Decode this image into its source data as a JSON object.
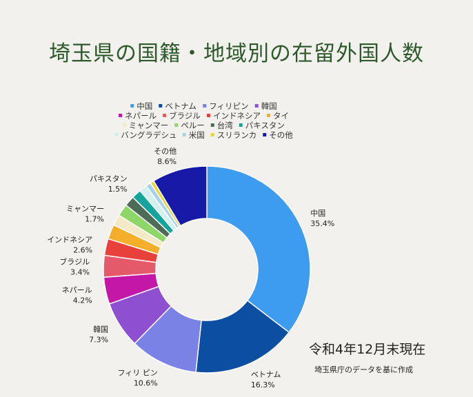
{
  "title": "埼玉県の国籍・地域別の在留外国人数",
  "footnote_date": "令和4年12月末現在",
  "footnote_source": "埼玉県庁のデータを基に作成",
  "chart_data": {
    "type": "pie",
    "donut": true,
    "legend_position": "top",
    "slices": [
      {
        "name": "中国",
        "value": 35.4,
        "color": "#3d9bf0",
        "label": "中国",
        "pct": "35.4%"
      },
      {
        "name": "ベトナム",
        "value": 16.3,
        "color": "#0b4ea2",
        "label": "ベトナム",
        "pct": "16.3%"
      },
      {
        "name": "フィリピン",
        "value": 10.6,
        "color": "#7b82e6",
        "label": "フィリ ピン",
        "pct": "10.6%"
      },
      {
        "name": "韓国",
        "value": 7.3,
        "color": "#8e4fd1",
        "label": "韓国",
        "pct": "7.3%"
      },
      {
        "name": "ネパール",
        "value": 4.2,
        "color": "#c517a6",
        "label": "ネパール",
        "pct": "4.2%"
      },
      {
        "name": "ブラジル",
        "value": 3.4,
        "color": "#e45a6a",
        "label": "ブラジル",
        "pct": "3.4%"
      },
      {
        "name": "インドネシア",
        "value": 2.6,
        "color": "#e8413c",
        "label": "インドネシア",
        "pct": "2.6%"
      },
      {
        "name": "タイ",
        "value": 2.3,
        "color": "#f4ae2a",
        "label": "",
        "pct": ""
      },
      {
        "name": "ミャンマー",
        "value": 1.7,
        "color": "#f3e9c6",
        "label": "ミャンマー",
        "pct": "1.7%"
      },
      {
        "name": "ペルー",
        "value": 1.9,
        "color": "#8ed667",
        "label": "",
        "pct": ""
      },
      {
        "name": "台湾",
        "value": 1.6,
        "color": "#4d6b57",
        "label": "",
        "pct": ""
      },
      {
        "name": "パキスタン",
        "value": 1.5,
        "color": "#13a59c",
        "label": "パキスタン",
        "pct": "1.5%"
      },
      {
        "name": "バングラデシュ",
        "value": 1.2,
        "color": "#d3f0ef",
        "label": "",
        "pct": ""
      },
      {
        "name": "米国",
        "value": 0.8,
        "color": "#a9d1ec",
        "label": "",
        "pct": ""
      },
      {
        "name": "スリランカ",
        "value": 0.6,
        "color": "#e8d43c",
        "label": "",
        "pct": ""
      },
      {
        "name": "その他",
        "value": 8.6,
        "color": "#1519a6",
        "label": "その他",
        "pct": "8.6%"
      }
    ]
  }
}
